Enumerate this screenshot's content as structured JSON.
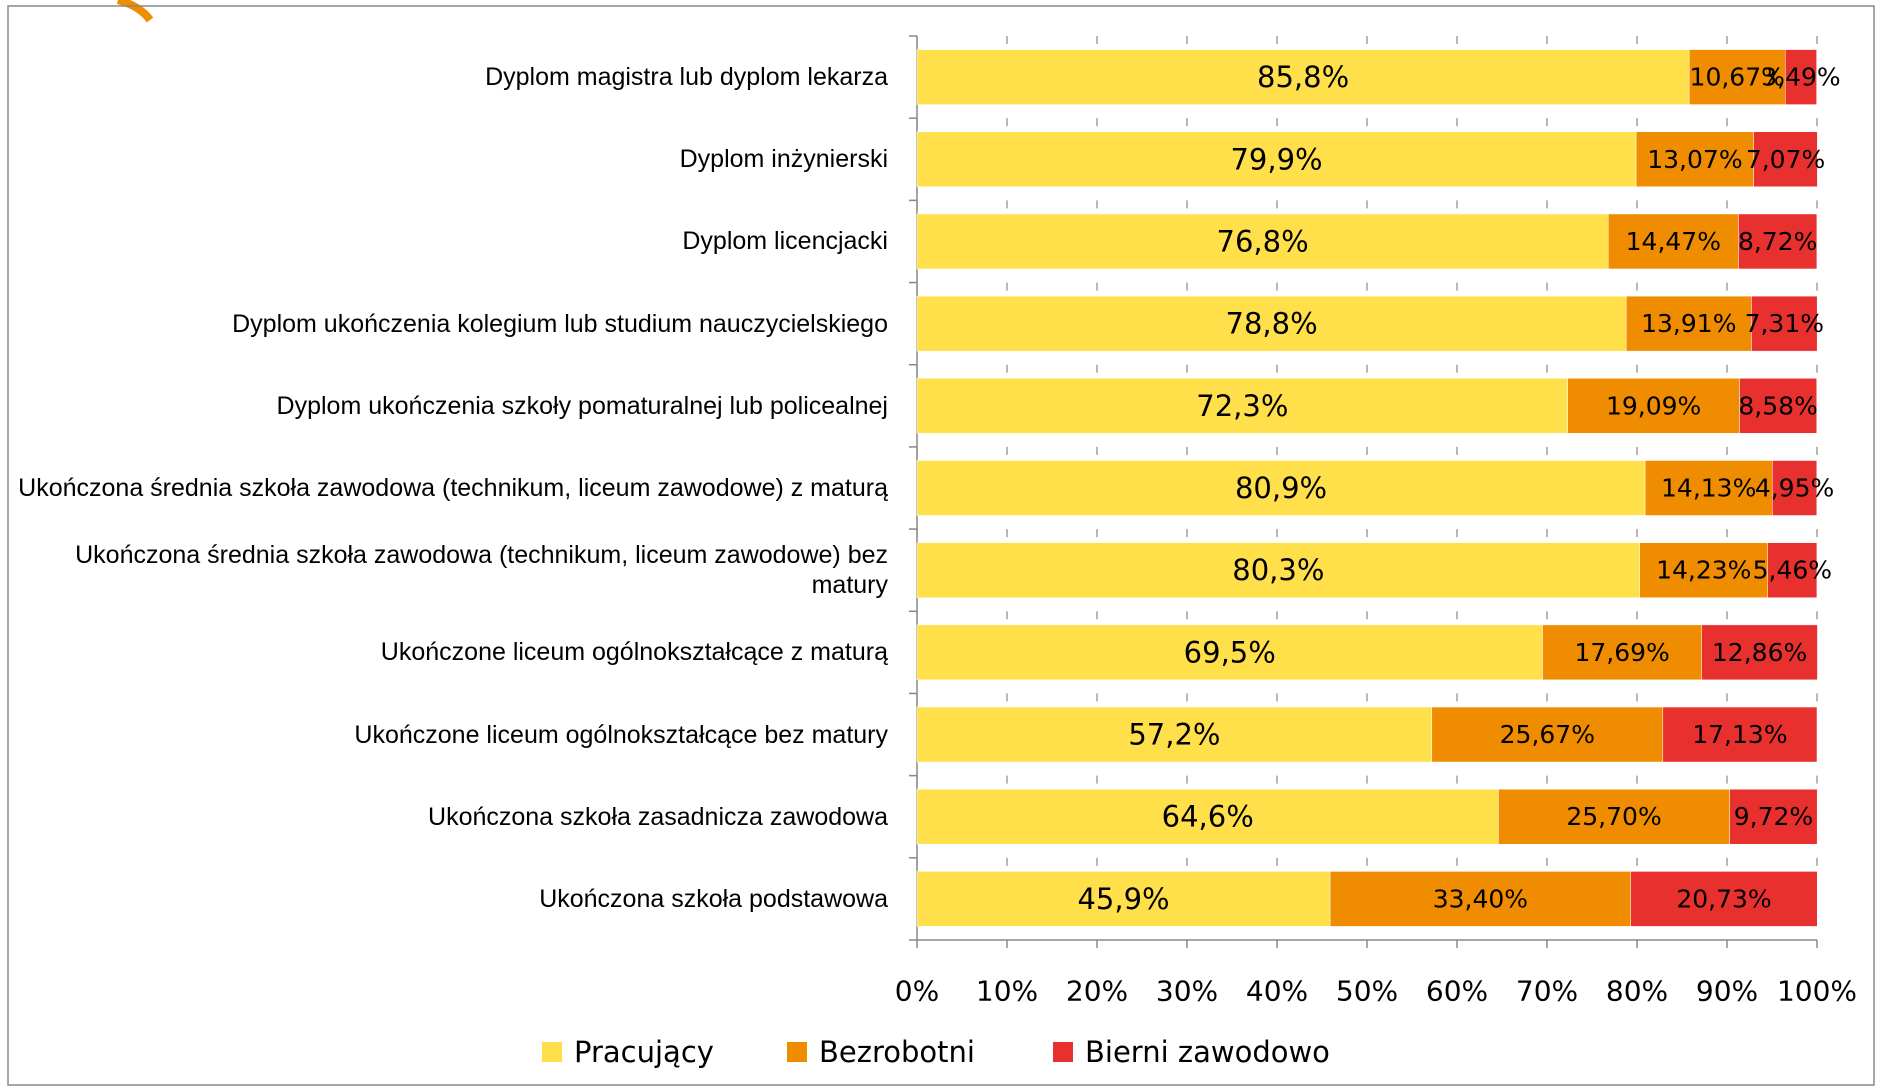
{
  "chart_data": {
    "type": "stacked_bar_horizontal",
    "categories": [
      "Dyplom magistra lub dyplom lekarza",
      "Dyplom inżynierski",
      "Dyplom licencjacki",
      "Dyplom ukończenia kolegium lub studium nauczycielskiego",
      "Dyplom ukończenia szkoły pomaturalnej lub policealnej",
      "Ukończona średnia szkoła zawodowa (technikum, liceum zawodowe) z maturą",
      "Ukończona średnia szkoła zawodowa (technikum, liceum zawodowe) bez matury",
      "Ukończone liceum ogólnokształcące z maturą",
      "Ukończone liceum ogólnokształcące bez matury",
      "Ukończona szkoła zasadnicza zawodowa",
      "Ukończona szkoła podstawowa"
    ],
    "series": [
      {
        "name": "Pracujący",
        "color": "#ffdf4a",
        "values": [
          85.8,
          79.9,
          76.8,
          78.8,
          72.3,
          80.9,
          80.3,
          69.5,
          57.2,
          64.6,
          45.9
        ],
        "value_labels": [
          "85,8%",
          "79,9%",
          "76,8%",
          "78,8%",
          "72,3%",
          "80,9%",
          "80,3%",
          "69,5%",
          "57,2%",
          "64,6%",
          "45,9%"
        ]
      },
      {
        "name": "Bezrobotni",
        "color": "#f08c00",
        "values": [
          10.67,
          13.07,
          14.47,
          13.91,
          19.09,
          14.13,
          14.23,
          17.69,
          25.67,
          25.7,
          33.4
        ],
        "value_labels": [
          "10,67%",
          "13,07%",
          "14,47%",
          "13,91%",
          "19,09%",
          "14,13%",
          "14,23%",
          "17,69%",
          "25,67%",
          "25,70%",
          "33,40%"
        ]
      },
      {
        "name": "Bierni zawodowo",
        "color": "#e8312f",
        "values": [
          3.49,
          7.07,
          8.72,
          7.31,
          8.58,
          4.95,
          5.46,
          12.86,
          17.13,
          9.72,
          20.73
        ],
        "value_labels": [
          "3,49%",
          "7,07%",
          "8,72%",
          "7,31%",
          "8,58%",
          "4,95%",
          "5,46%",
          "12,86%",
          "17,13%",
          "9,72%",
          "20,73%"
        ]
      }
    ],
    "xlim": [
      0,
      100
    ],
    "xticks": [
      {
        "value": 0,
        "label": "0%"
      },
      {
        "value": 10,
        "label": "10%"
      },
      {
        "value": 20,
        "label": "20%"
      },
      {
        "value": 30,
        "label": "30%"
      },
      {
        "value": 40,
        "label": "40%"
      },
      {
        "value": 50,
        "label": "50%"
      },
      {
        "value": 60,
        "label": "60%"
      },
      {
        "value": 70,
        "label": "70%"
      },
      {
        "value": 80,
        "label": "80%"
      },
      {
        "value": 90,
        "label": "90%"
      },
      {
        "value": 100,
        "label": "100%"
      }
    ],
    "legend": "bottom"
  }
}
